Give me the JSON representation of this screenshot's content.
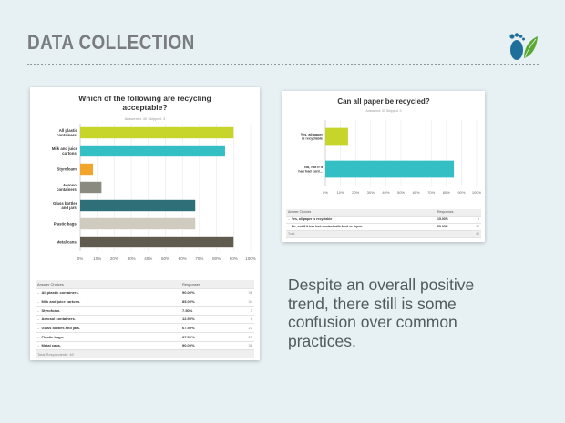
{
  "slide": {
    "title": "DATA COLLECTION",
    "body_lines": [
      "Despite an overall positive",
      "trend, there still is some",
      "confusion over common",
      "practices."
    ]
  },
  "chart1": {
    "title_lines": [
      "Which of the following are recycling",
      "acceptable?"
    ],
    "answered_skipped": "Answered: 40    Skipped: 3",
    "table": {
      "header": [
        "Answer Choices",
        "Responses",
        ""
      ],
      "rows": [
        {
          "choice": "All plastic containers.",
          "pct": "90.00%",
          "count": "36"
        },
        {
          "choice": "Milk and juice cartons.",
          "pct": "85.00%",
          "count": "34"
        },
        {
          "choice": "Styrofoam.",
          "pct": "7.50%",
          "count": "3"
        },
        {
          "choice": "Aerosol containers.",
          "pct": "12.50%",
          "count": "5"
        },
        {
          "choice": "Glass bottles and jars.",
          "pct": "67.50%",
          "count": "27"
        },
        {
          "choice": "Plastic bags.",
          "pct": "67.50%",
          "count": "27"
        },
        {
          "choice": "Metal cans.",
          "pct": "90.00%",
          "count": "36"
        }
      ],
      "footer": "Total Respondents: 40"
    }
  },
  "chart2": {
    "title": "Can all paper be recycled?",
    "answered_skipped": "Answered: 40    Skipped: 3",
    "table": {
      "header": [
        "Answer Choices",
        "Responses",
        ""
      ],
      "rows": [
        {
          "choice": "Yes, all paper is recyclable",
          "pct": "15.00%",
          "count": "6"
        },
        {
          "choice": "No, not if it has had contact with food or liquor.",
          "pct": "85.00%",
          "count": "34"
        }
      ],
      "footer_label": "Total",
      "footer_count": "40"
    }
  },
  "chart_data": [
    {
      "type": "bar",
      "orientation": "horizontal",
      "title": "Which of the following are recycling acceptable?",
      "categories": [
        [
          "All plastic",
          "containers."
        ],
        [
          "Milk and juice",
          "cartons."
        ],
        [
          "Styrofoam."
        ],
        [
          "Aerosol",
          "containers."
        ],
        [
          "Glass bottles",
          "and jars."
        ],
        [
          "Plastic bags."
        ],
        [
          "Metal cans."
        ]
      ],
      "values": [
        90,
        85,
        7.5,
        12.5,
        67.5,
        67.5,
        90
      ],
      "colors": [
        "#c7d42a",
        "#33bfc4",
        "#f2a52b",
        "#8a8a80",
        "#2f6f77",
        "#cfcbbf",
        "#5f5b4f"
      ],
      "xticks": [
        "0%",
        "10%",
        "20%",
        "30%",
        "40%",
        "50%",
        "60%",
        "70%",
        "80%",
        "90%",
        "100%"
      ],
      "xlim": [
        0,
        100
      ]
    },
    {
      "type": "bar",
      "orientation": "horizontal",
      "title": "Can all paper be recycled?",
      "categories": [
        [
          "Yes, all paper",
          "is recyclable"
        ],
        [
          "No, not if it",
          "has had cont..."
        ]
      ],
      "values": [
        15,
        85
      ],
      "colors": [
        "#c7d42a",
        "#33bfc4"
      ],
      "xticks": [
        "0%",
        "10%",
        "20%",
        "30%",
        "40%",
        "50%",
        "60%",
        "70%",
        "80%",
        "90%",
        "100%"
      ],
      "xlim": [
        0,
        100
      ]
    }
  ]
}
